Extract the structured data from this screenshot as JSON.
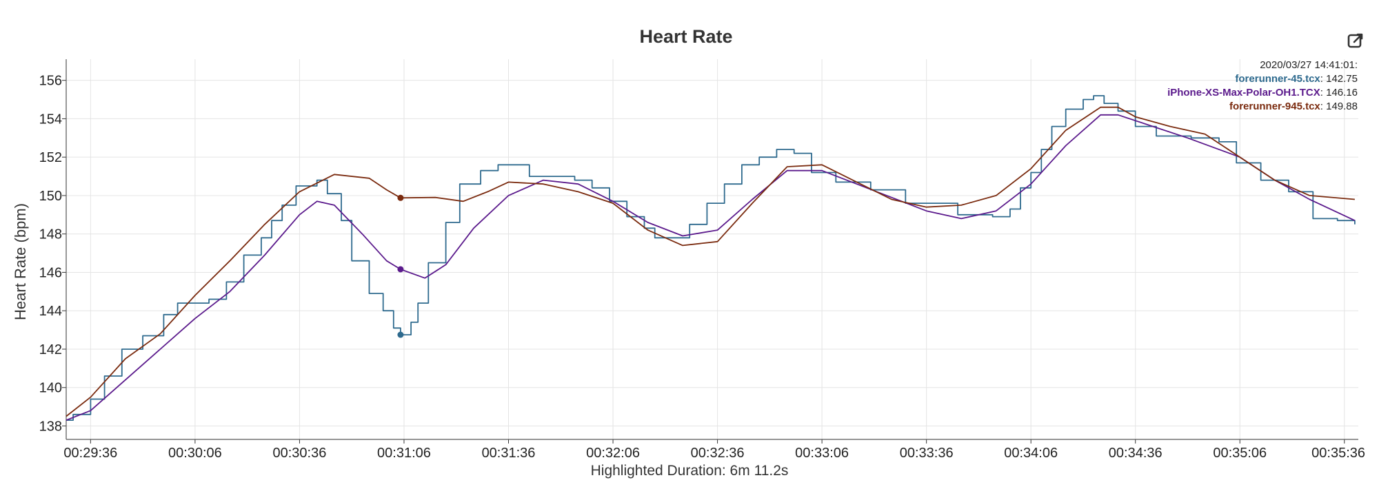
{
  "chart_data": {
    "type": "line",
    "title": "Heart Rate",
    "ylabel": "Heart Rate (bpm)",
    "xlabel": "Highlighted Duration: 6m 11.2s",
    "xlim": [
      "00:29:29",
      "00:35:40"
    ],
    "ylim": [
      137.3,
      157.1
    ],
    "y_ticks": [
      138,
      140,
      142,
      144,
      146,
      148,
      150,
      152,
      154,
      156
    ],
    "x_ticks": [
      "00:29:36",
      "00:30:06",
      "00:30:36",
      "00:31:06",
      "00:31:36",
      "00:32:06",
      "00:32:36",
      "00:33:06",
      "00:33:36",
      "00:34:06",
      "00:34:36",
      "00:35:06",
      "00:35:36"
    ],
    "grid": true,
    "series": [
      {
        "name": "forerunner-45.tcx",
        "color": "#2e6a8e",
        "stepped": true,
        "points": [
          [
            "00:29:29",
            138.3
          ],
          [
            "00:29:31",
            138.6
          ],
          [
            "00:29:36",
            139.4
          ],
          [
            "00:29:40",
            140.6
          ],
          [
            "00:29:45",
            142.0
          ],
          [
            "00:29:51",
            142.7
          ],
          [
            "00:29:57",
            143.8
          ],
          [
            "00:30:01",
            144.4
          ],
          [
            "00:30:10",
            144.6
          ],
          [
            "00:30:15",
            145.5
          ],
          [
            "00:30:20",
            146.9
          ],
          [
            "00:30:25",
            147.8
          ],
          [
            "00:30:28",
            148.7
          ],
          [
            "00:30:31",
            149.5
          ],
          [
            "00:30:35",
            150.5
          ],
          [
            "00:30:41",
            150.8
          ],
          [
            "00:30:44",
            150.1
          ],
          [
            "00:30:48",
            148.7
          ],
          [
            "00:30:51",
            146.6
          ],
          [
            "00:30:56",
            144.9
          ],
          [
            "00:31:00",
            144.0
          ],
          [
            "00:31:03",
            143.1
          ],
          [
            "00:31:05",
            142.75
          ],
          [
            "00:31:08",
            143.4
          ],
          [
            "00:31:10",
            144.4
          ],
          [
            "00:31:13",
            146.5
          ],
          [
            "00:31:18",
            148.6
          ],
          [
            "00:31:22",
            150.6
          ],
          [
            "00:31:28",
            151.3
          ],
          [
            "00:31:33",
            151.6
          ],
          [
            "00:31:42",
            151.0
          ],
          [
            "00:31:55",
            150.8
          ],
          [
            "00:32:00",
            150.4
          ],
          [
            "00:32:05",
            149.7
          ],
          [
            "00:32:10",
            148.9
          ],
          [
            "00:32:15",
            148.3
          ],
          [
            "00:32:18",
            147.8
          ],
          [
            "00:32:25",
            147.8
          ],
          [
            "00:32:28",
            148.5
          ],
          [
            "00:32:33",
            149.6
          ],
          [
            "00:32:38",
            150.6
          ],
          [
            "00:32:43",
            151.6
          ],
          [
            "00:32:48",
            152.0
          ],
          [
            "00:32:53",
            152.4
          ],
          [
            "00:32:58",
            152.2
          ],
          [
            "00:33:03",
            151.2
          ],
          [
            "00:33:10",
            150.7
          ],
          [
            "00:33:20",
            150.3
          ],
          [
            "00:33:30",
            149.6
          ],
          [
            "00:33:45",
            149.0
          ],
          [
            "00:33:55",
            148.9
          ],
          [
            "00:34:00",
            149.3
          ],
          [
            "00:34:03",
            150.4
          ],
          [
            "00:34:06",
            151.2
          ],
          [
            "00:34:09",
            152.4
          ],
          [
            "00:34:12",
            153.6
          ],
          [
            "00:34:16",
            154.5
          ],
          [
            "00:34:21",
            155.0
          ],
          [
            "00:34:24",
            155.2
          ],
          [
            "00:34:27",
            154.8
          ],
          [
            "00:34:31",
            154.4
          ],
          [
            "00:34:36",
            153.6
          ],
          [
            "00:34:42",
            153.1
          ],
          [
            "00:34:52",
            153.0
          ],
          [
            "00:35:00",
            152.8
          ],
          [
            "00:35:05",
            151.7
          ],
          [
            "00:35:12",
            150.8
          ],
          [
            "00:35:20",
            150.2
          ],
          [
            "00:35:27",
            148.8
          ],
          [
            "00:35:34",
            148.7
          ],
          [
            "00:35:39",
            148.5
          ]
        ]
      },
      {
        "name": "iPhone-XS-Max-Polar-OH1.TCX",
        "color": "#5b1a8c",
        "stepped": false,
        "points": [
          [
            "00:29:29",
            138.3
          ],
          [
            "00:29:36",
            138.8
          ],
          [
            "00:29:46",
            140.4
          ],
          [
            "00:29:56",
            142.0
          ],
          [
            "00:30:06",
            143.6
          ],
          [
            "00:30:16",
            145.0
          ],
          [
            "00:30:26",
            146.9
          ],
          [
            "00:30:36",
            149.0
          ],
          [
            "00:30:41",
            149.7
          ],
          [
            "00:30:46",
            149.5
          ],
          [
            "00:30:54",
            148.0
          ],
          [
            "00:31:01",
            146.6
          ],
          [
            "00:31:05",
            146.16
          ],
          [
            "00:31:12",
            145.7
          ],
          [
            "00:31:18",
            146.4
          ],
          [
            "00:31:26",
            148.3
          ],
          [
            "00:31:36",
            150.0
          ],
          [
            "00:31:46",
            150.8
          ],
          [
            "00:31:56",
            150.6
          ],
          [
            "00:32:06",
            149.7
          ],
          [
            "00:32:16",
            148.6
          ],
          [
            "00:32:26",
            147.9
          ],
          [
            "00:32:36",
            148.2
          ],
          [
            "00:32:46",
            149.8
          ],
          [
            "00:32:56",
            151.3
          ],
          [
            "00:33:06",
            151.3
          ],
          [
            "00:33:16",
            150.6
          ],
          [
            "00:33:26",
            149.9
          ],
          [
            "00:33:36",
            149.2
          ],
          [
            "00:33:46",
            148.8
          ],
          [
            "00:33:56",
            149.2
          ],
          [
            "00:34:06",
            150.6
          ],
          [
            "00:34:16",
            152.6
          ],
          [
            "00:34:26",
            154.2
          ],
          [
            "00:34:31",
            154.2
          ],
          [
            "00:34:41",
            153.6
          ],
          [
            "00:34:51",
            153.0
          ],
          [
            "00:35:06",
            152.0
          ],
          [
            "00:35:16",
            150.8
          ],
          [
            "00:35:26",
            149.8
          ],
          [
            "00:35:39",
            148.7
          ]
        ]
      },
      {
        "name": "forerunner-945.tcx",
        "color": "#7a2a0e",
        "stepped": false,
        "points": [
          [
            "00:29:29",
            138.5
          ],
          [
            "00:29:36",
            139.5
          ],
          [
            "00:29:46",
            141.5
          ],
          [
            "00:29:56",
            142.8
          ],
          [
            "00:30:06",
            144.8
          ],
          [
            "00:30:16",
            146.6
          ],
          [
            "00:30:26",
            148.5
          ],
          [
            "00:30:36",
            150.2
          ],
          [
            "00:30:46",
            151.1
          ],
          [
            "00:30:56",
            150.9
          ],
          [
            "00:31:01",
            150.3
          ],
          [
            "00:31:05",
            149.88
          ],
          [
            "00:31:15",
            149.9
          ],
          [
            "00:31:23",
            149.7
          ],
          [
            "00:31:30",
            150.2
          ],
          [
            "00:31:36",
            150.7
          ],
          [
            "00:31:46",
            150.6
          ],
          [
            "00:31:56",
            150.2
          ],
          [
            "00:32:06",
            149.6
          ],
          [
            "00:32:16",
            148.2
          ],
          [
            "00:32:26",
            147.4
          ],
          [
            "00:32:36",
            147.6
          ],
          [
            "00:32:46",
            149.6
          ],
          [
            "00:32:56",
            151.5
          ],
          [
            "00:33:06",
            151.6
          ],
          [
            "00:33:16",
            150.7
          ],
          [
            "00:33:26",
            149.8
          ],
          [
            "00:33:36",
            149.4
          ],
          [
            "00:33:46",
            149.5
          ],
          [
            "00:33:56",
            150.0
          ],
          [
            "00:34:06",
            151.4
          ],
          [
            "00:34:16",
            153.4
          ],
          [
            "00:34:26",
            154.6
          ],
          [
            "00:34:31",
            154.6
          ],
          [
            "00:34:36",
            154.1
          ],
          [
            "00:34:46",
            153.6
          ],
          [
            "00:34:56",
            153.2
          ],
          [
            "00:35:06",
            152.0
          ],
          [
            "00:35:16",
            150.8
          ],
          [
            "00:35:26",
            150.0
          ],
          [
            "00:35:39",
            149.8
          ]
        ]
      }
    ],
    "highlight": {
      "time": "00:31:05",
      "markers": [
        142.75,
        146.16,
        149.88
      ]
    }
  },
  "readout": {
    "timestamp": "2020/03/27 14:41:01:",
    "entries": [
      {
        "name": "forerunner-45.tcx",
        "value": "142.75",
        "color": "#2e6a8e"
      },
      {
        "name": "iPhone-XS-Max-Polar-OH1.TCX",
        "value": "146.16",
        "color": "#5b1a8c"
      },
      {
        "name": "forerunner-945.tcx",
        "value": "149.88",
        "color": "#7a2a0e"
      }
    ]
  },
  "toolbar": {
    "export_icon": "export-edit-icon"
  }
}
